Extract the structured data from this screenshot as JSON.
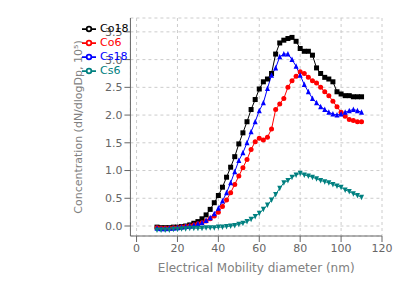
{
  "chart_data": {
    "type": "line",
    "xlabel": "Electrical Mobility diameter (nm)",
    "ylabel": "Concentration (dN/dlogDp, 10⁵)",
    "xlim": [
      -3,
      120
    ],
    "ylim": [
      -0.18,
      3.75
    ],
    "xticks": [
      0,
      20,
      40,
      60,
      80,
      100,
      120
    ],
    "yticks": [
      {
        "value": 0.0,
        "label": "0.0"
      },
      0.5,
      {
        "value": 1.0,
        "label": "1.0"
      },
      1.5,
      {
        "value": 2.0,
        "label": "2.0"
      },
      2.5,
      {
        "value": 3.0,
        "label": "3.0"
      },
      3.5
    ],
    "grid": true,
    "legend": "upper left",
    "x": [
      10,
      12,
      14,
      16,
      18,
      20,
      22,
      24,
      26,
      28,
      30,
      32,
      34,
      36,
      38,
      40,
      42,
      44,
      46,
      48,
      50,
      52,
      54,
      56,
      58,
      60,
      62,
      64,
      66,
      68,
      70,
      72,
      74,
      76,
      78,
      80,
      82,
      84,
      86,
      88,
      90,
      92,
      94,
      96,
      98,
      100,
      102,
      104,
      106,
      108,
      110
    ],
    "series": [
      {
        "name": "Co18",
        "color": "black",
        "marker": "square",
        "values": [
          -0.02,
          -0.03,
          -0.03,
          -0.03,
          -0.02,
          -0.02,
          -0.01,
          0.0,
          0.02,
          0.05,
          0.08,
          0.13,
          0.2,
          0.3,
          0.42,
          0.55,
          0.7,
          0.88,
          1.06,
          1.25,
          1.48,
          1.68,
          1.88,
          2.1,
          2.28,
          2.47,
          2.6,
          2.65,
          2.75,
          3.1,
          3.3,
          3.35,
          3.38,
          3.4,
          3.33,
          3.2,
          3.15,
          3.15,
          3.08,
          2.85,
          2.75,
          2.68,
          2.65,
          2.6,
          2.42,
          2.38,
          2.35,
          2.35,
          2.33,
          2.33,
          2.33
        ]
      },
      {
        "name": "Co6",
        "color": "red",
        "marker": "circle",
        "values": [
          -0.03,
          -0.04,
          -0.04,
          -0.04,
          -0.03,
          -0.03,
          -0.02,
          -0.01,
          0.0,
          0.02,
          0.04,
          0.06,
          0.09,
          0.13,
          0.18,
          0.25,
          0.35,
          0.47,
          0.6,
          0.75,
          0.9,
          1.05,
          1.2,
          1.38,
          1.52,
          1.58,
          1.55,
          1.6,
          1.75,
          2.1,
          2.2,
          2.3,
          2.5,
          2.62,
          2.7,
          2.78,
          2.75,
          2.68,
          2.62,
          2.58,
          2.5,
          2.42,
          2.35,
          2.25,
          2.15,
          2.05,
          1.98,
          1.92,
          1.9,
          1.88,
          1.88
        ]
      },
      {
        "name": "Cs18",
        "color": "blue",
        "marker": "triangle",
        "values": [
          -0.04,
          -0.05,
          -0.05,
          -0.04,
          -0.04,
          -0.03,
          -0.02,
          -0.01,
          0.0,
          0.02,
          0.04,
          0.06,
          0.1,
          0.15,
          0.22,
          0.32,
          0.45,
          0.6,
          0.78,
          0.98,
          1.18,
          1.32,
          1.5,
          1.7,
          1.88,
          2.08,
          2.22,
          2.48,
          2.72,
          2.85,
          3.05,
          3.1,
          3.1,
          3.0,
          2.88,
          2.72,
          2.55,
          2.42,
          2.3,
          2.22,
          2.15,
          2.1,
          2.05,
          2.02,
          2.0,
          2.02,
          2.05,
          2.08,
          2.1,
          2.08,
          2.05
        ]
      },
      {
        "name": "Cs6",
        "color": "#008080",
        "marker": "triangle-down",
        "values": [
          -0.07,
          -0.07,
          -0.07,
          -0.07,
          -0.06,
          -0.06,
          -0.05,
          -0.05,
          -0.04,
          -0.04,
          -0.04,
          -0.04,
          -0.03,
          -0.03,
          -0.03,
          -0.02,
          -0.02,
          -0.01,
          0.0,
          0.01,
          0.03,
          0.05,
          0.08,
          0.12,
          0.17,
          0.23,
          0.3,
          0.38,
          0.47,
          0.57,
          0.68,
          0.78,
          0.82,
          0.88,
          0.92,
          0.95,
          0.92,
          0.9,
          0.88,
          0.85,
          0.82,
          0.8,
          0.78,
          0.75,
          0.72,
          0.7,
          0.65,
          0.62,
          0.58,
          0.55,
          0.52
        ]
      }
    ]
  }
}
